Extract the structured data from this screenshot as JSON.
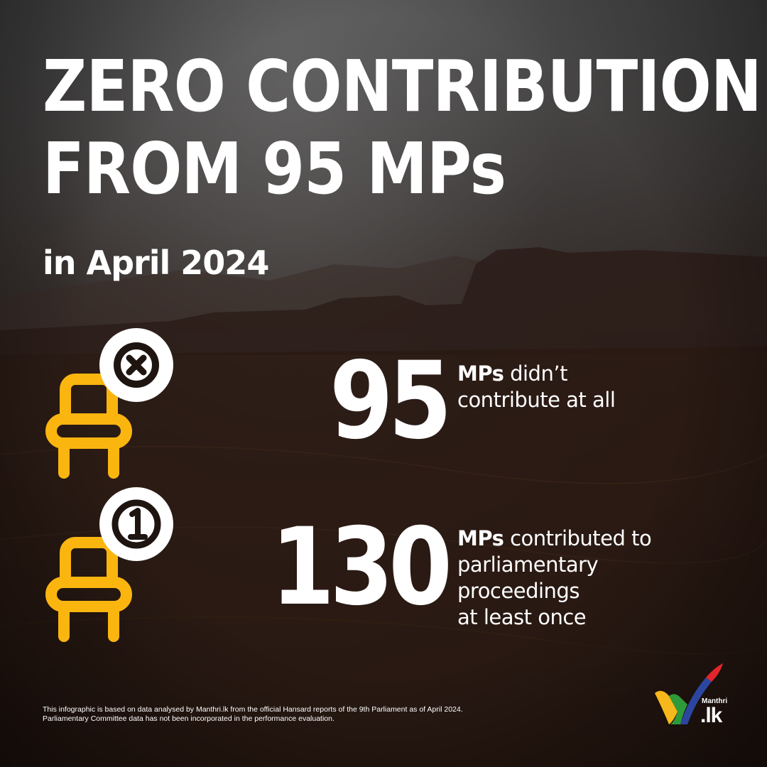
{
  "headline": {
    "line1": "ZERO CONTRIBUTION",
    "line2": "FROM 95 MPs"
  },
  "subtitle": "in April 2024",
  "stats": [
    {
      "number": "95",
      "lead": "MPs",
      "text_line1": " didn’t",
      "text_lines": [
        "contribute at all"
      ],
      "icon": "chair-x-icon"
    },
    {
      "number": "130",
      "lead": "MPs",
      "text_line1": " contributed to",
      "text_lines": [
        "parliamentary",
        "proceedings",
        "at least once"
      ],
      "icon": "chair-one-icon"
    }
  ],
  "footnote": {
    "line1": "This infographic is based on data analysed by Manthri.lk from the official Hansard reports of the 9th Parliament as of April 2024.",
    "line2": "Parliamentary Committee data has not been incorporated in the performance evaluation."
  },
  "logo": {
    "small": "Manthri",
    "big": ".lk"
  },
  "colors": {
    "icon_yellow": "#fbb50f",
    "text": "#ffffff",
    "logo_yellow": "#f6b81a",
    "logo_green": "#2e9a3a",
    "logo_blue": "#2c46a0",
    "logo_red": "#e2262b"
  }
}
